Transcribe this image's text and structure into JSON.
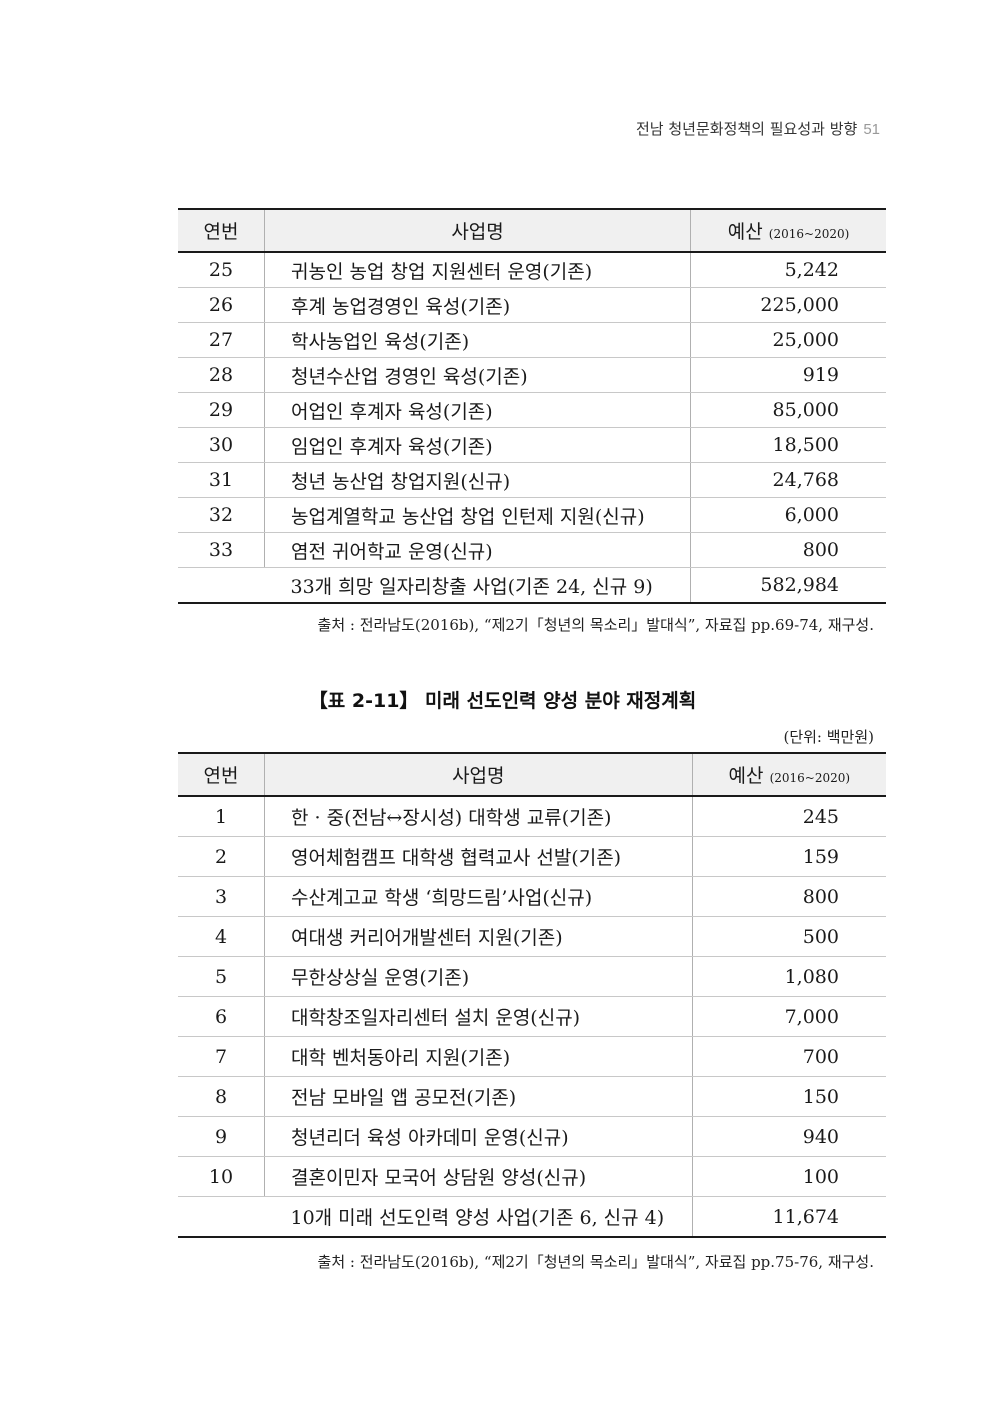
{
  "header": {
    "title": "전남 청년문화정책의 필요성과 방향",
    "page_number": "51"
  },
  "table1": {
    "columns": {
      "no": "연번",
      "name": "사업명",
      "budget": "예산",
      "budget_period": "(2016~2020)"
    },
    "rows": [
      {
        "no": "25",
        "name": "귀농인 농업 창업 지원센터 운영(기존)",
        "budget": "5,242"
      },
      {
        "no": "26",
        "name": "후계 농업경영인 육성(기존)",
        "budget": "225,000"
      },
      {
        "no": "27",
        "name": "학사농업인 육성(기존)",
        "budget": "25,000"
      },
      {
        "no": "28",
        "name": "청년수산업 경영인 육성(기존)",
        "budget": "919"
      },
      {
        "no": "29",
        "name": "어업인 후계자 육성(기존)",
        "budget": "85,000"
      },
      {
        "no": "30",
        "name": "임업인 후계자 육성(기존)",
        "budget": "18,500"
      },
      {
        "no": "31",
        "name": "청년 농산업 창업지원(신규)",
        "budget": "24,768"
      },
      {
        "no": "32",
        "name": "농업계열학교 농산업 창업 인턴제 지원(신규)",
        "budget": "6,000"
      },
      {
        "no": "33",
        "name": "염전 귀어학교 운영(신규)",
        "budget": "800"
      }
    ],
    "total": {
      "label": "33개 희망 일자리창출 사업(기존 24, 신규 9)",
      "budget": "582,984"
    },
    "source": "출처 : 전라남도(2016b), “제2기「청년의 목소리」발대식”, 자료집 pp.69-74, 재구성."
  },
  "table2": {
    "caption": "【표 2-11】 미래 선도인력 양성 분야 재정계획",
    "unit": "(단위: 백만원)",
    "columns": {
      "no": "연번",
      "name": "사업명",
      "budget": "예산",
      "budget_period": "(2016~2020)"
    },
    "rows": [
      {
        "no": "1",
        "name": "한 · 중(전남↔장시성) 대학생 교류(기존)",
        "budget": "245"
      },
      {
        "no": "2",
        "name": "영어체험캠프 대학생 협력교사 선발(기존)",
        "budget": "159"
      },
      {
        "no": "3",
        "name": "수산계고교 학생 ‘희망드림’사업(신규)",
        "budget": "800"
      },
      {
        "no": "4",
        "name": "여대생 커리어개발센터 지원(기존)",
        "budget": "500"
      },
      {
        "no": "5",
        "name": "무한상상실 운영(기존)",
        "budget": "1,080"
      },
      {
        "no": "6",
        "name": "대학창조일자리센터 설치 운영(신규)",
        "budget": "7,000"
      },
      {
        "no": "7",
        "name": "대학 벤처동아리 지원(기존)",
        "budget": "700"
      },
      {
        "no": "8",
        "name": "전남 모바일 앱 공모전(기존)",
        "budget": "150"
      },
      {
        "no": "9",
        "name": "청년리더 육성 아카데미 운영(신규)",
        "budget": "940"
      },
      {
        "no": "10",
        "name": "결혼이민자 모국어 상담원 양성(신규)",
        "budget": "100"
      }
    ],
    "total": {
      "label": "10개 미래 선도인력 양성 사업(기존 6, 신규 4)",
      "budget": "11,674"
    },
    "source": "출처 : 전라남도(2016b), “제2기「청년의 목소리」발대식”, 자료집 pp.75-76, 재구성."
  }
}
